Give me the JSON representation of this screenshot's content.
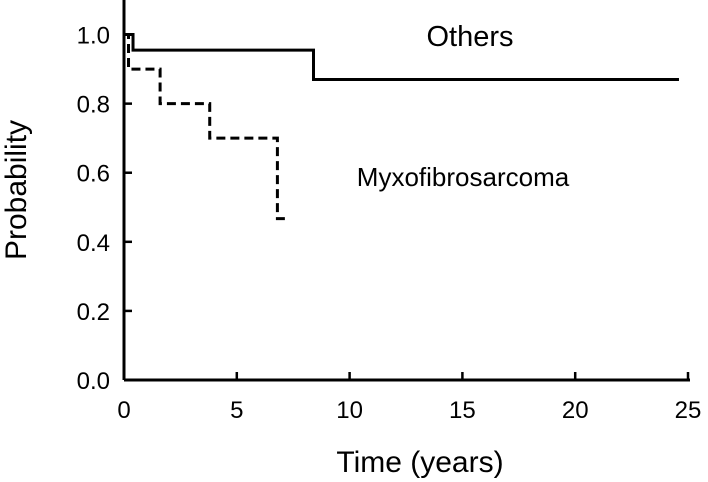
{
  "chart_data": {
    "type": "line",
    "title": "",
    "xlabel": "Time (years)",
    "ylabel": "Probability",
    "xlim": [
      0,
      25
    ],
    "ylim": [
      0,
      1.1
    ],
    "x_ticks": [
      "0",
      "5",
      "10",
      "15",
      "20",
      "25"
    ],
    "y_ticks": [
      "0.0",
      "0.2",
      "0.4",
      "0.6",
      "0.8",
      "1.0"
    ],
    "grid": false,
    "legend": "none",
    "series": [
      {
        "name": "Others",
        "style": "solid",
        "color": "#000000",
        "x": [
          0,
          0.4,
          0.4,
          8.4,
          8.4,
          24.6
        ],
        "y": [
          1.0,
          1.0,
          0.955,
          0.955,
          0.87,
          0.87
        ]
      },
      {
        "name": "Myxofibrosarcoma",
        "style": "dashed",
        "color": "#000000",
        "x": [
          0,
          0.2,
          0.2,
          1.6,
          1.6,
          3.8,
          3.8,
          6.8,
          6.8,
          7.3
        ],
        "y": [
          1.0,
          1.0,
          0.9,
          0.9,
          0.8,
          0.8,
          0.7,
          0.7,
          0.467,
          0.467
        ]
      }
    ]
  }
}
